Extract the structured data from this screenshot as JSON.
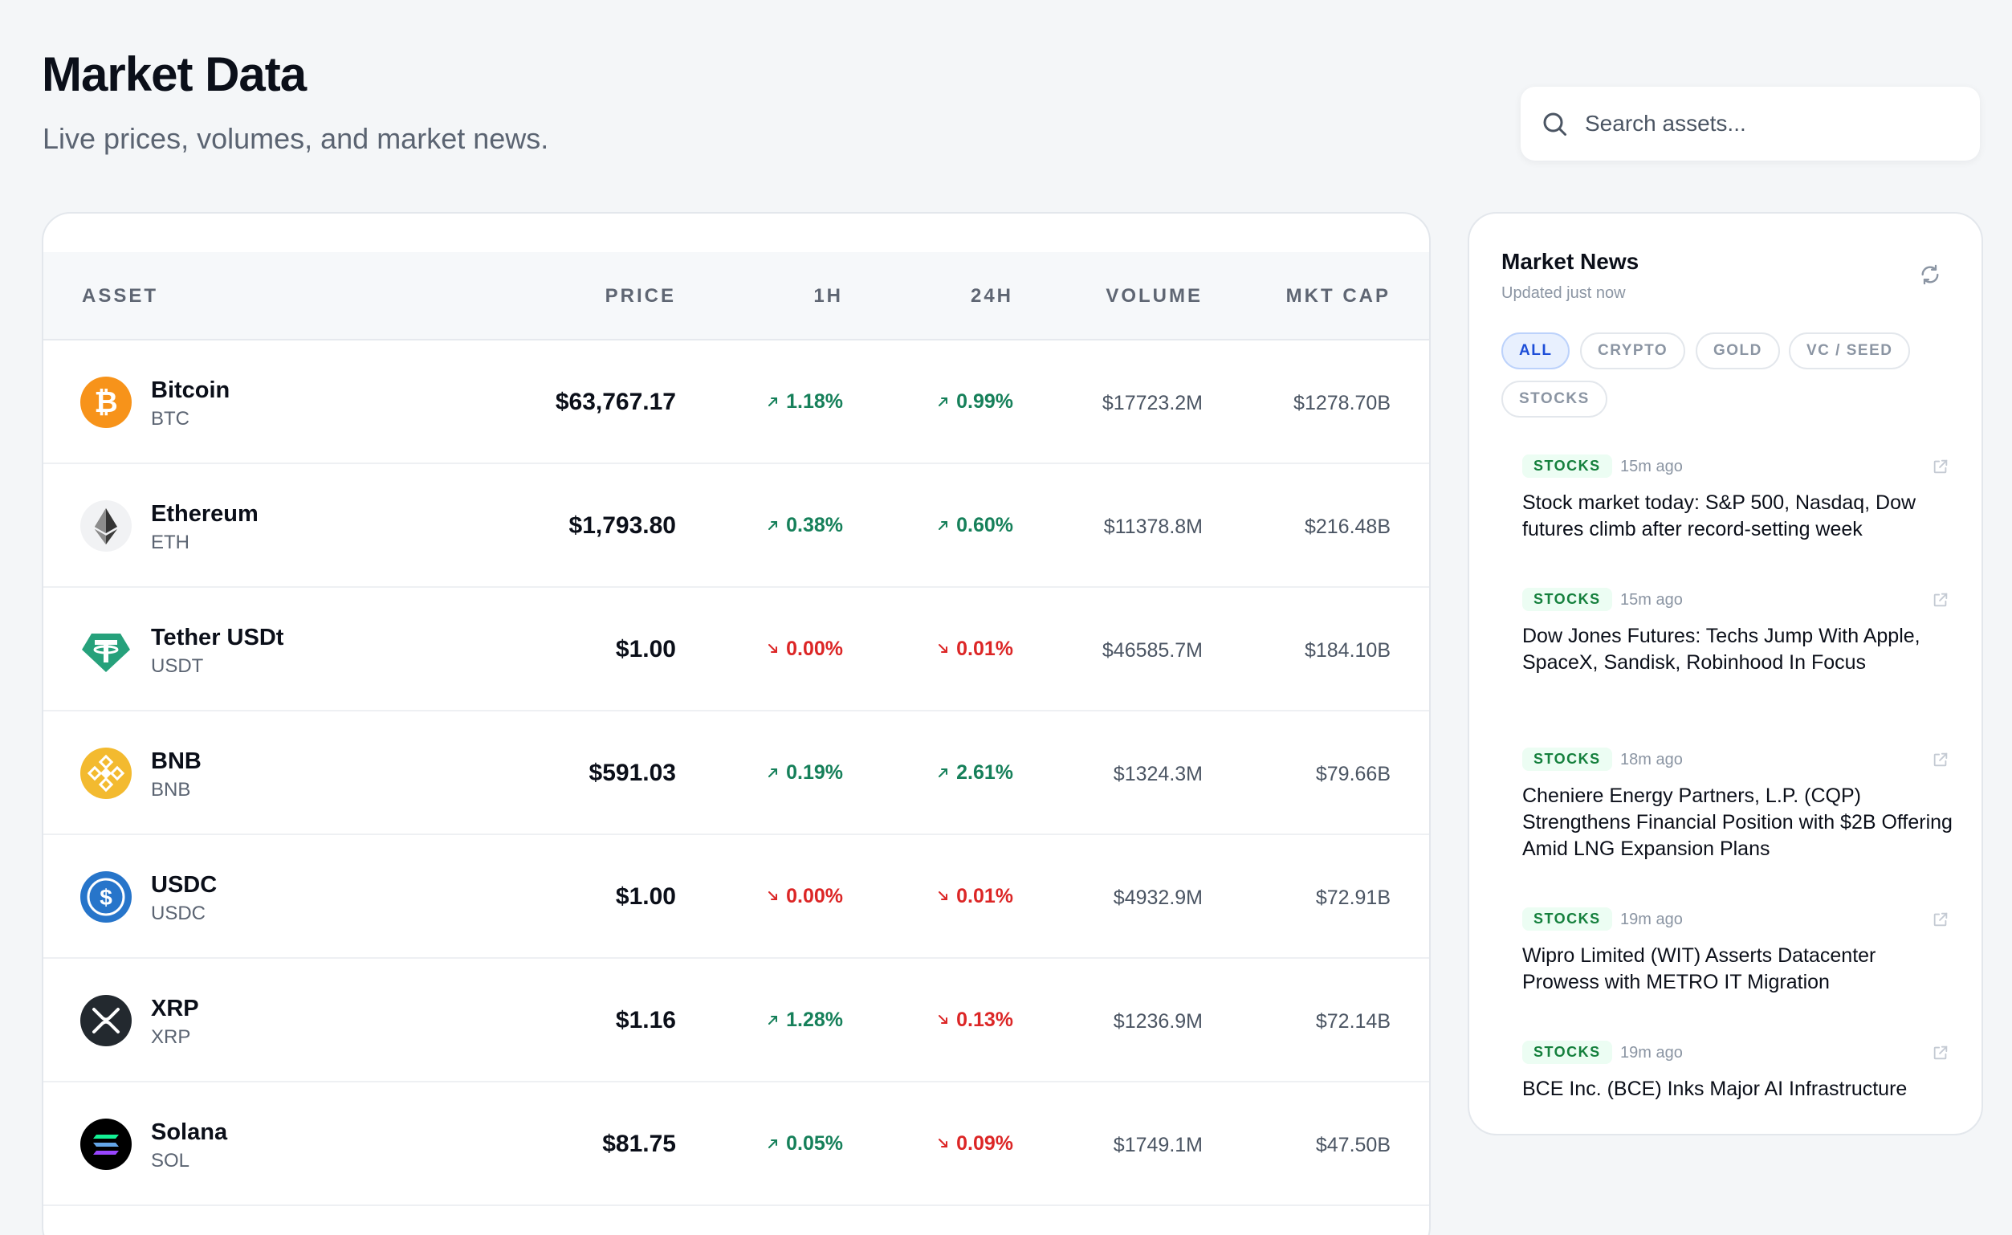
{
  "header": {
    "title": "Market Data",
    "subtitle": "Live prices, volumes, and market news."
  },
  "search": {
    "placeholder": "Search assets...",
    "value": ""
  },
  "table": {
    "columns": {
      "asset": "ASSET",
      "price": "PRICE",
      "h1": "1H",
      "h24": "24H",
      "volume": "VOLUME",
      "mcap": "MKT CAP"
    },
    "rows": [
      {
        "name": "Bitcoin",
        "symbol": "BTC",
        "price": "$63,767.17",
        "h1": "1.18%",
        "h1_dir": "up",
        "h24": "0.99%",
        "h24_dir": "up",
        "volume": "$17723.2M",
        "mcap": "$1278.70B",
        "icon": "bitcoin-icon",
        "color": "#f7931a"
      },
      {
        "name": "Ethereum",
        "symbol": "ETH",
        "price": "$1,793.80",
        "h1": "0.38%",
        "h1_dir": "up",
        "h24": "0.60%",
        "h24_dir": "up",
        "volume": "$11378.8M",
        "mcap": "$216.48B",
        "icon": "ethereum-icon",
        "color": "#343434"
      },
      {
        "name": "Tether USDt",
        "symbol": "USDT",
        "price": "$1.00",
        "h1": "0.00%",
        "h1_dir": "down",
        "h24": "0.01%",
        "h24_dir": "down",
        "volume": "$46585.7M",
        "mcap": "$184.10B",
        "icon": "tether-icon",
        "color": "#26a17b"
      },
      {
        "name": "BNB",
        "symbol": "BNB",
        "price": "$591.03",
        "h1": "0.19%",
        "h1_dir": "up",
        "h24": "2.61%",
        "h24_dir": "up",
        "volume": "$1324.3M",
        "mcap": "$79.66B",
        "icon": "bnb-icon",
        "color": "#f3ba2f"
      },
      {
        "name": "USDC",
        "symbol": "USDC",
        "price": "$1.00",
        "h1": "0.00%",
        "h1_dir": "down",
        "h24": "0.01%",
        "h24_dir": "down",
        "volume": "$4932.9M",
        "mcap": "$72.91B",
        "icon": "usdc-icon",
        "color": "#2775ca"
      },
      {
        "name": "XRP",
        "symbol": "XRP",
        "price": "$1.16",
        "h1": "1.28%",
        "h1_dir": "up",
        "h24": "0.13%",
        "h24_dir": "down",
        "volume": "$1236.9M",
        "mcap": "$72.14B",
        "icon": "xrp-icon",
        "color": "#23292f"
      },
      {
        "name": "Solana",
        "symbol": "SOL",
        "price": "$81.75",
        "h1": "0.05%",
        "h1_dir": "up",
        "h24": "0.09%",
        "h24_dir": "down",
        "volume": "$1749.1M",
        "mcap": "$47.50B",
        "icon": "solana-icon",
        "color": "#000000"
      }
    ]
  },
  "news": {
    "title": "Market News",
    "updated": "Updated just now",
    "filters": [
      "ALL",
      "CRYPTO",
      "GOLD",
      "VC / SEED",
      "STOCKS"
    ],
    "active_filter": "ALL",
    "items": [
      {
        "tag": "STOCKS",
        "time": "15m ago",
        "headline": "Stock market today: S&P 500, Nasdaq, Dow futures climb after record-setting week"
      },
      {
        "tag": "STOCKS",
        "time": "15m ago",
        "headline": "Dow Jones Futures: Techs Jump With Apple, SpaceX, Sandisk, Robinhood In Focus"
      },
      {
        "tag": "STOCKS",
        "time": "18m ago",
        "headline": "Cheniere Energy Partners, L.P. (CQP) Strengthens Financial Position with $2B Offering Amid LNG Expansion Plans"
      },
      {
        "tag": "STOCKS",
        "time": "19m ago",
        "headline": "Wipro Limited (WIT) Asserts Datacenter Prowess with METRO IT Migration"
      },
      {
        "tag": "STOCKS",
        "time": "19m ago",
        "headline": "BCE Inc. (BCE) Inks Major AI Infrastructure"
      }
    ]
  },
  "colors": {
    "up": "#16805a",
    "down": "#dc2626",
    "accent": "#1d4ed8"
  }
}
